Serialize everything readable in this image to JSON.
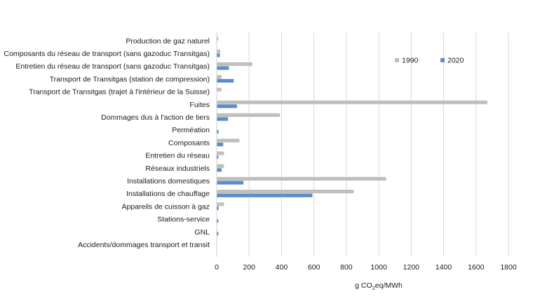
{
  "chart_data": {
    "type": "bar",
    "orientation": "horizontal",
    "categories": [
      "Production de gaz naturel",
      "Composants du réseau de transport (sans gazoduc Transitgas)",
      "Entretien du réseau de transport (sans gazoduc Transitgas)",
      "Transport de Transitgas (station de compression)",
      "Transport de Transitgas (trajet à l'intérieur de la Suisse)",
      "Fuites",
      "Dommages dus à l'action de tiers",
      "Perméation",
      "Composants",
      "Entretien du réseau",
      "Réseaux industriels",
      "Installations domestiques",
      "Installations de chauffage",
      "Appareils de cuisson à gaz",
      "Stations-service",
      "GNL",
      "Accidents/dommages transport et transit"
    ],
    "series": [
      {
        "name": "1990",
        "color": "#bfbfbf",
        "values": [
          10,
          22,
          220,
          30,
          30,
          1670,
          390,
          0,
          140,
          45,
          45,
          1045,
          845,
          45,
          0,
          0,
          0
        ]
      },
      {
        "name": "2020",
        "color": "#5b8ec9",
        "values": [
          0,
          20,
          75,
          105,
          0,
          125,
          70,
          12,
          40,
          10,
          30,
          165,
          590,
          12,
          10,
          10,
          0
        ]
      }
    ],
    "xlim": [
      0,
      1800
    ],
    "xticks": [
      0,
      200,
      400,
      600,
      800,
      1000,
      1200,
      1400,
      1600,
      1800
    ],
    "xlabel_main": "g CO",
    "xlabel_sub": "2",
    "xlabel_tail": "eq/MWh",
    "grid": true,
    "legend_position": "top-right"
  }
}
